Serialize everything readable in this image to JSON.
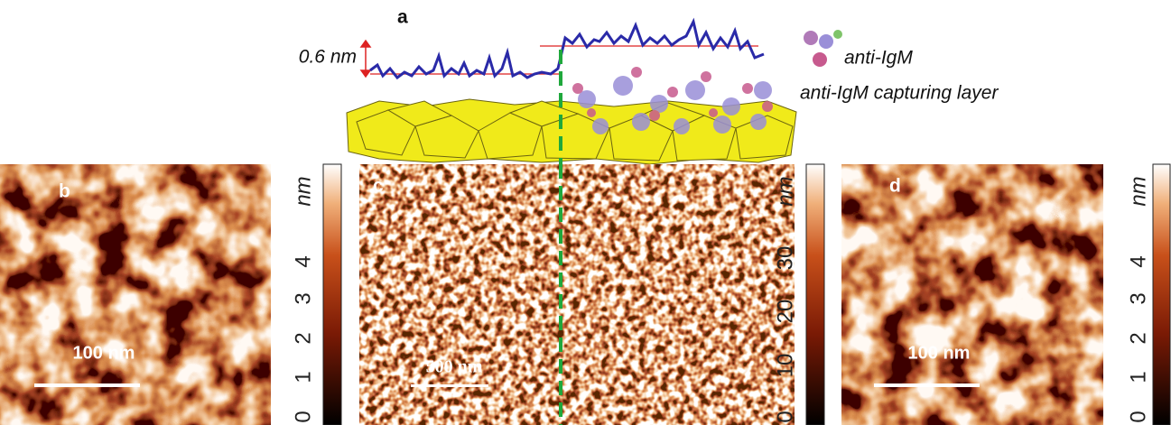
{
  "panel_a": {
    "label": "a",
    "step_height": "0.6 nm",
    "legend": [
      "anti-IgM",
      "anti-IgM capturing layer"
    ]
  },
  "panel_b": {
    "label": "b",
    "scale_bar": "100 nm",
    "colorbar": {
      "unit": "nm",
      "ticks": [
        0,
        1,
        2,
        3,
        4
      ]
    }
  },
  "panel_c": {
    "label": "c",
    "scale_bar": "500 nm",
    "colorbar": {
      "unit": "nm",
      "ticks": [
        0,
        10,
        20,
        30
      ]
    }
  },
  "panel_d": {
    "label": "d",
    "scale_bar": "100 nm",
    "colorbar": {
      "unit": "nm",
      "ticks": [
        0,
        1,
        2,
        3,
        4
      ]
    }
  }
}
